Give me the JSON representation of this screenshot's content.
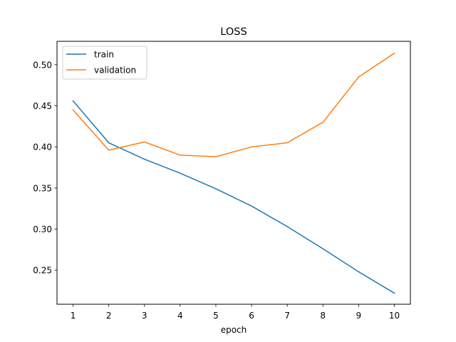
{
  "chart_data": {
    "type": "line",
    "title": "LOSS",
    "xlabel": "epoch",
    "ylabel": "",
    "x": [
      1,
      2,
      3,
      4,
      5,
      6,
      7,
      8,
      9,
      10
    ],
    "xticks": [
      "1",
      "2",
      "3",
      "4",
      "5",
      "6",
      "7",
      "8",
      "9",
      "10"
    ],
    "yticks": [
      "0.25",
      "0.30",
      "0.35",
      "0.40",
      "0.45",
      "0.50"
    ],
    "xlim": [
      0.55,
      10.45
    ],
    "ylim": [
      0.2085,
      0.5285
    ],
    "grid": false,
    "legend_position": "top-left",
    "series": [
      {
        "name": "train",
        "color": "#1f77b4",
        "values": [
          0.456,
          0.405,
          0.385,
          0.368,
          0.349,
          0.328,
          0.303,
          0.276,
          0.248,
          0.222
        ]
      },
      {
        "name": "validation",
        "color": "#ff7f0e",
        "values": [
          0.445,
          0.396,
          0.406,
          0.39,
          0.388,
          0.4,
          0.405,
          0.43,
          0.485,
          0.514
        ]
      }
    ]
  }
}
